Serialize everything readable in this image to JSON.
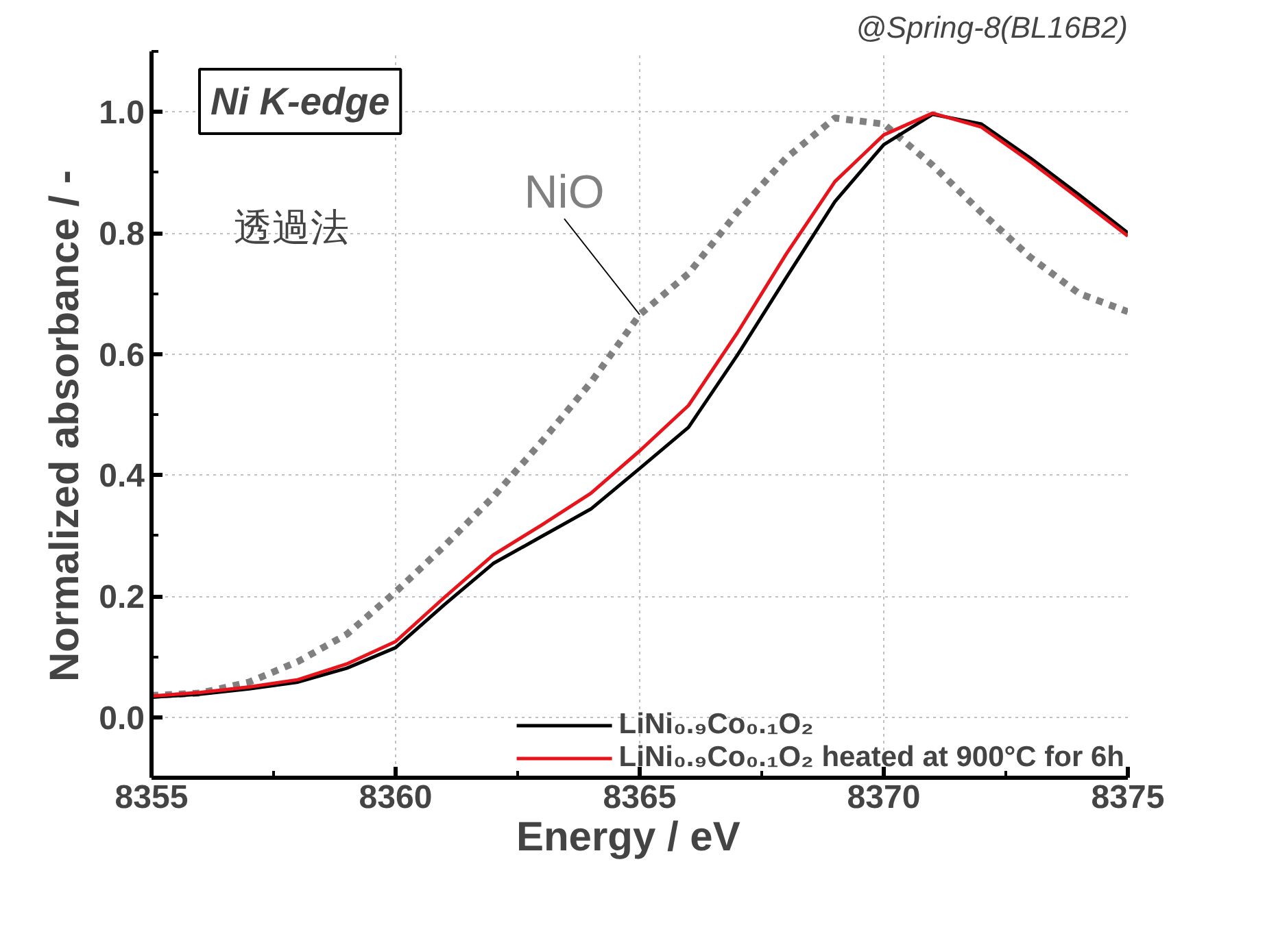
{
  "chart_data": {
    "type": "line",
    "xlabel": "Energy  /  eV",
    "ylabel": "Normalized absorbance  /  -",
    "annotations": [
      "@Spring-8(BL16B2)",
      "Ni K-edge",
      "透過法"
    ],
    "x": [
      8355,
      8356,
      8357,
      8358,
      8359,
      8360,
      8361,
      8362,
      8363,
      8364,
      8365,
      8366,
      8367,
      8368,
      8369,
      8370,
      8371,
      8372,
      8373,
      8374,
      8375
    ],
    "series": [
      {
        "name": "NiO",
        "color": "#808080",
        "line_style": "dotted",
        "values": [
          0.036,
          0.04,
          0.058,
          0.092,
          0.137,
          0.207,
          0.283,
          0.364,
          0.456,
          0.553,
          0.665,
          0.733,
          0.834,
          0.924,
          0.99,
          0.98,
          0.912,
          0.834,
          0.76,
          0.7,
          0.67
        ]
      },
      {
        "name": "LiNi₀.₉Co₀.₁O₂",
        "color": "#000000",
        "values": [
          0.033,
          0.038,
          0.047,
          0.058,
          0.081,
          0.115,
          0.186,
          0.254,
          0.299,
          0.344,
          0.411,
          0.479,
          0.598,
          0.726,
          0.852,
          0.946,
          0.996,
          0.98,
          0.924,
          0.863,
          0.8
        ]
      },
      {
        "name": "LiNi₀.₉Co₀.₁O₂ heated at 900°C for 6h",
        "color": "#e8141c",
        "values": [
          0.035,
          0.041,
          0.05,
          0.062,
          0.088,
          0.125,
          0.198,
          0.268,
          0.318,
          0.37,
          0.44,
          0.515,
          0.635,
          0.765,
          0.885,
          0.962,
          0.998,
          0.975,
          0.918,
          0.857,
          0.795
        ]
      }
    ],
    "xlim": [
      8355,
      8375
    ],
    "xticks": [
      8355,
      8360,
      8365,
      8370,
      8375
    ],
    "ylim": [
      -0.1,
      1.1
    ],
    "yticks": [
      {
        "value": 0,
        "label": "0.0"
      },
      {
        "value": 0.2,
        "label": "0.2"
      },
      {
        "value": 0.4,
        "label": "0.4"
      },
      {
        "value": 0.6,
        "label": "0.6"
      },
      {
        "value": 0.8,
        "label": "0.8"
      },
      {
        "value": 1,
        "label": "1.0"
      }
    ],
    "grid": true,
    "legend": "bottom right"
  }
}
